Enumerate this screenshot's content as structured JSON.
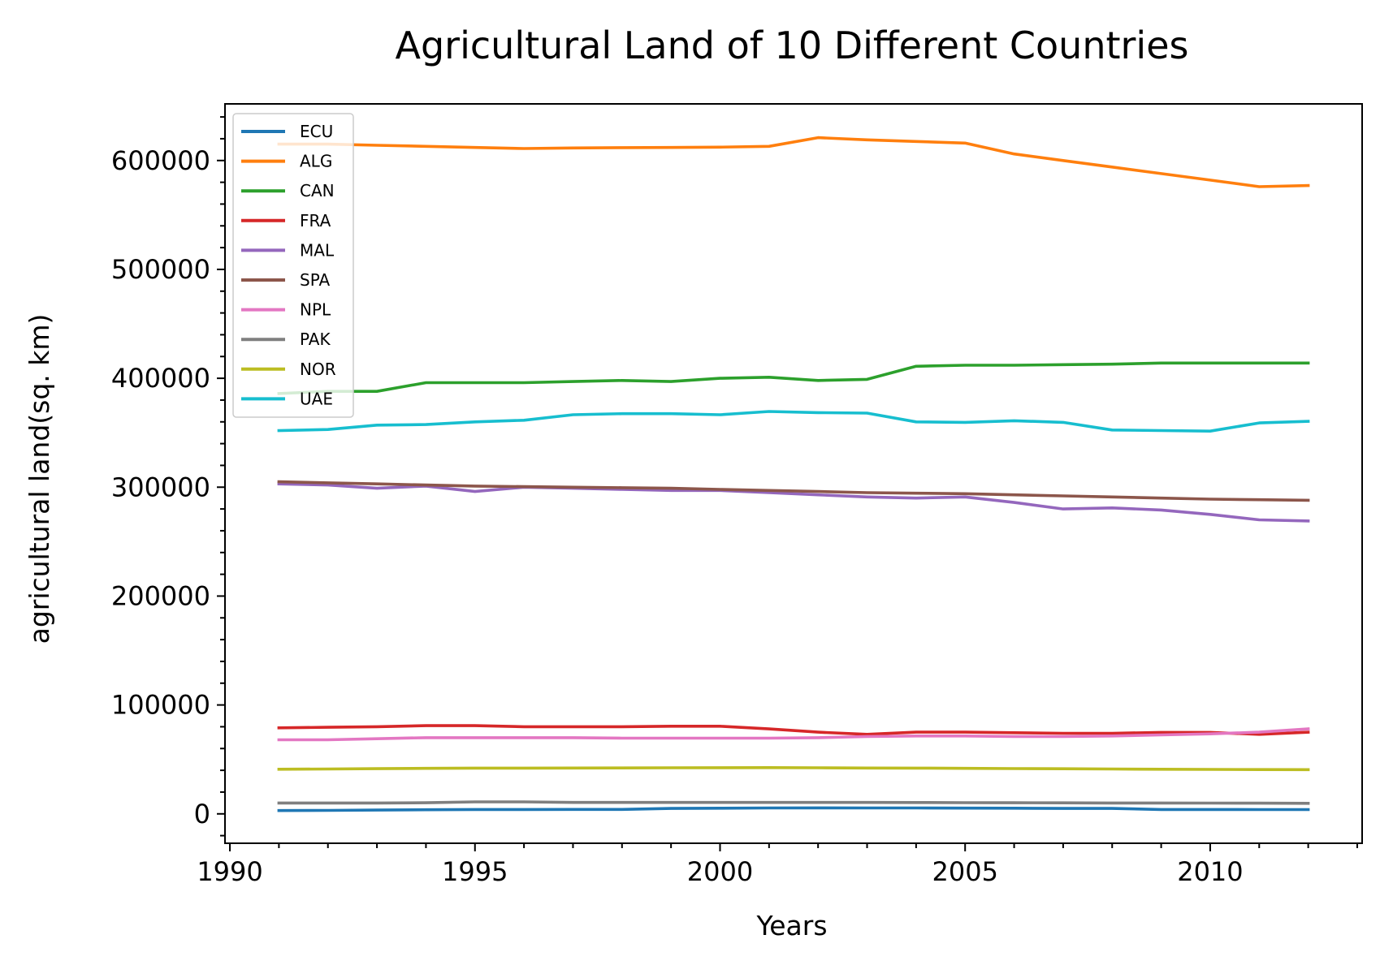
{
  "chart_data": {
    "type": "line",
    "title": "Agricultural Land of 10 Different Countries",
    "xlabel": "Years",
    "ylabel": "agricultural land(sq. km)",
    "xlim": [
      1989.9,
      2013.1
    ],
    "ylim": [
      -27000,
      652000
    ],
    "xticks": [
      1990,
      1995,
      2000,
      2005,
      2010
    ],
    "yticks": [
      0,
      100000,
      200000,
      300000,
      400000,
      500000,
      600000
    ],
    "grid": false,
    "legend_position": "upper-left",
    "x": [
      1991,
      1992,
      1993,
      1994,
      1995,
      1996,
      1997,
      1998,
      1999,
      2000,
      2001,
      2002,
      2003,
      2004,
      2005,
      2006,
      2007,
      2008,
      2009,
      2010,
      2011,
      2012
    ],
    "series": [
      {
        "name": "ECU",
        "color": "#1f77b4",
        "values": [
          3000,
          3200,
          3500,
          3800,
          4000,
          4000,
          4100,
          4100,
          5000,
          5200,
          5400,
          5500,
          5400,
          5400,
          5300,
          5200,
          5000,
          5000,
          4000,
          4000,
          3900,
          3900
        ]
      },
      {
        "name": "ALG",
        "color": "#ff7f0e",
        "values": [
          615000,
          615000,
          614000,
          613000,
          612000,
          611000,
          611500,
          611800,
          612000,
          612300,
          613000,
          621000,
          619000,
          617500,
          616000,
          606000,
          600000,
          594000,
          588000,
          582000,
          576000,
          577000
        ]
      },
      {
        "name": "CAN",
        "color": "#2ca02c",
        "values": [
          386000,
          388000,
          388000,
          396000,
          396000,
          396000,
          397000,
          398000,
          397000,
          400000,
          401000,
          398000,
          399000,
          411000,
          412000,
          412000,
          412500,
          413000,
          414000,
          414000,
          414000,
          414000
        ]
      },
      {
        "name": "FRA",
        "color": "#d62728",
        "values": [
          79000,
          79500,
          80000,
          81000,
          81000,
          80000,
          80000,
          80000,
          80500,
          80500,
          78000,
          75000,
          73000,
          75000,
          75000,
          74500,
          74000,
          74000,
          74800,
          74800,
          73000,
          75000
        ]
      },
      {
        "name": "MAL",
        "color": "#9467bd",
        "values": [
          303000,
          302000,
          299000,
          301000,
          296000,
          300000,
          299000,
          298000,
          297000,
          297000,
          295000,
          293000,
          291000,
          290000,
          291000,
          286000,
          280000,
          281000,
          279000,
          275000,
          270000,
          269000
        ]
      },
      {
        "name": "SPA",
        "color": "#8c564b",
        "values": [
          305000,
          304000,
          303000,
          302000,
          301000,
          300500,
          300000,
          299500,
          299000,
          298000,
          297000,
          296000,
          295000,
          294500,
          294000,
          293000,
          292000,
          291000,
          290000,
          289000,
          288500,
          288000
        ]
      },
      {
        "name": "NPL",
        "color": "#e377c2",
        "values": [
          68000,
          68000,
          69000,
          70000,
          70000,
          70000,
          70000,
          69500,
          69500,
          69500,
          69500,
          70000,
          71000,
          71500,
          71500,
          71000,
          71000,
          71500,
          72500,
          73500,
          75000,
          78000
        ]
      },
      {
        "name": "PAK",
        "color": "#7f7f7f",
        "values": [
          10000,
          10000,
          10000,
          10200,
          11000,
          11000,
          10500,
          10500,
          10500,
          10500,
          10500,
          10500,
          10500,
          10400,
          10300,
          10200,
          10100,
          10000,
          10000,
          9900,
          9800,
          9700
        ]
      },
      {
        "name": "NOR",
        "color": "#bcbd22",
        "values": [
          41000,
          41200,
          41500,
          41800,
          42000,
          42000,
          42100,
          42200,
          42300,
          42400,
          42500,
          42300,
          42100,
          42000,
          41800,
          41600,
          41400,
          41200,
          41000,
          40800,
          40700,
          40600
        ]
      },
      {
        "name": "UAE",
        "color": "#17becf",
        "values": [
          352000,
          353000,
          357000,
          357500,
          360000,
          361500,
          366500,
          367500,
          367500,
          366500,
          369500,
          368500,
          368000,
          360000,
          359500,
          361000,
          359500,
          352500,
          352000,
          351500,
          359000,
          360500
        ]
      }
    ]
  }
}
